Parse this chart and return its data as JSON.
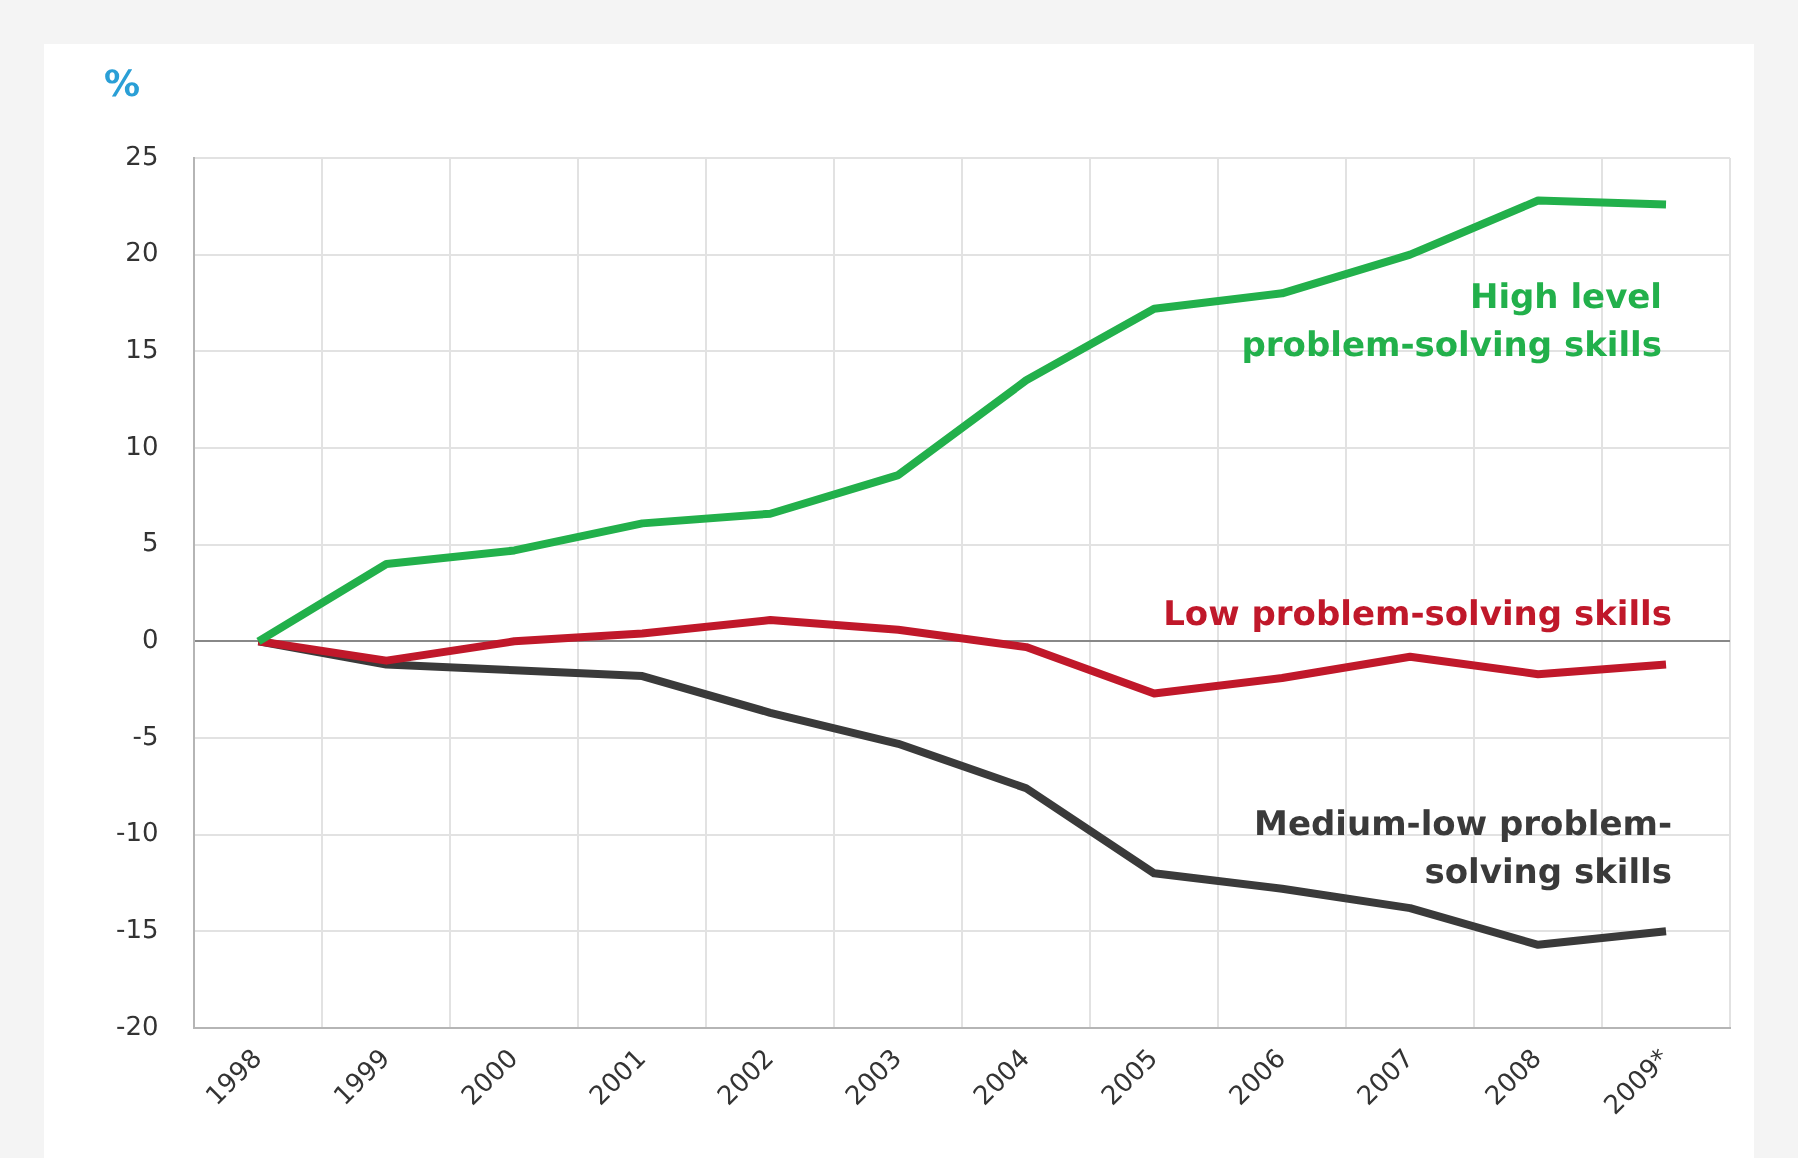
{
  "chart_data": {
    "type": "line",
    "ylabel": "%",
    "categories": [
      "1998",
      "1999",
      "2000",
      "2001",
      "2002",
      "2003",
      "2004",
      "2005",
      "2006",
      "2007",
      "2008",
      "2009*"
    ],
    "ylim": [
      -20,
      25
    ],
    "yticks": [
      -20,
      -15,
      -10,
      -5,
      0,
      5,
      10,
      15,
      20,
      25
    ],
    "grid": true,
    "legend": false,
    "marker": "none",
    "line_style": "solid",
    "series": [
      {
        "name": "High level problem-solving skills",
        "color": "#22b04b",
        "values": [
          0,
          4.0,
          4.7,
          6.1,
          6.6,
          8.6,
          13.5,
          17.2,
          18.0,
          20.0,
          22.8,
          22.6
        ]
      },
      {
        "name": "Low problem-solving skills",
        "color": "#c0182a",
        "values": [
          0,
          -1.0,
          0,
          0.4,
          1.1,
          0.6,
          -0.3,
          -2.7,
          -1.9,
          -0.8,
          -1.7,
          -1.2
        ]
      },
      {
        "name": "Medium-low problem-solving skills",
        "color": "#3a3a3a",
        "values": [
          0,
          -1.2,
          -1.5,
          -1.8,
          -3.7,
          -5.3,
          -7.6,
          -12.0,
          -12.8,
          -13.8,
          -15.7,
          -15.0
        ]
      }
    ]
  }
}
